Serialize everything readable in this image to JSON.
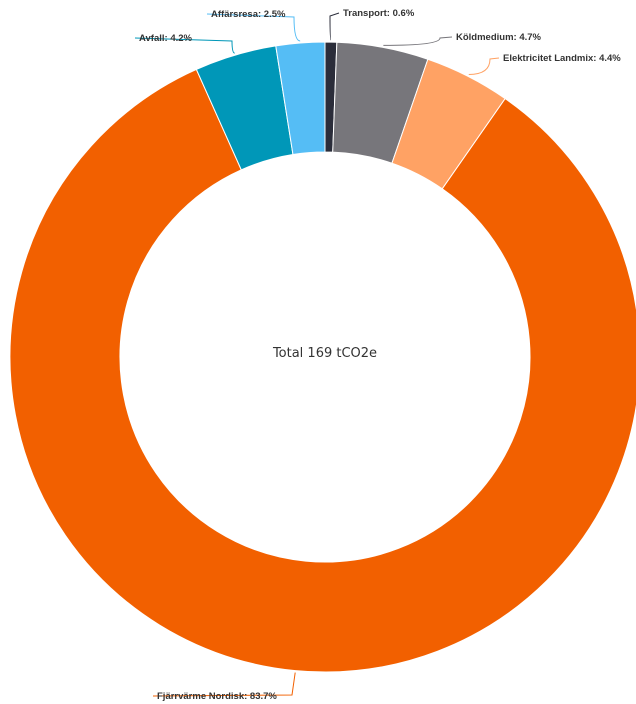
{
  "chart_data": {
    "type": "pie",
    "donut": true,
    "center_label": "Total 169 tCO2e",
    "slices": [
      {
        "label": "Transport: 0.6%",
        "value": 0.6,
        "color": "#2b2d3a"
      },
      {
        "label": "Köldmedium: 4.7%",
        "value": 4.7,
        "color": "#77767b"
      },
      {
        "label": "Elektricitet Landmix: 4.4%",
        "value": 4.4,
        "color": "#ffa264"
      },
      {
        "label": "Fjärrvärme Nordisk: 83.7%",
        "value": 83.7,
        "color": "#f26000"
      },
      {
        "label": "Avfall: 4.2%",
        "value": 4.2,
        "color": "#0097b8"
      },
      {
        "label": "Affärsresa: 2.5%",
        "value": 2.5,
        "color": "#55bdf5"
      }
    ]
  }
}
